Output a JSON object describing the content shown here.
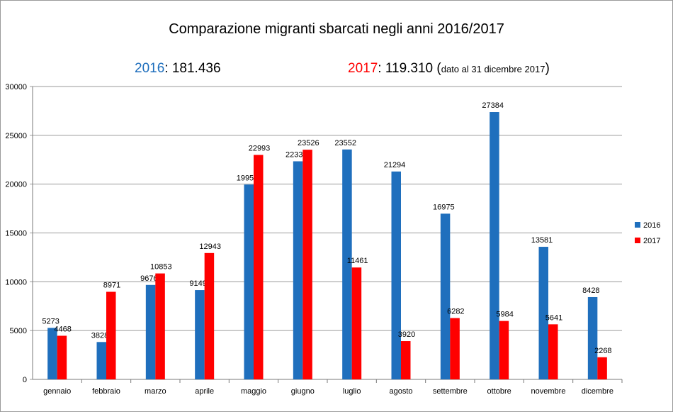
{
  "header": {
    "title": "Comparazione migranti sbarcati negli anni 2016/2017",
    "total_2016_year": "2016",
    "total_2016_value": ": 181.436",
    "total_2017_year": "2017",
    "total_2017_value": ": 119.310",
    "note_open": "(",
    "note_text": "dato al 31 dicembre 2017",
    "note_close": ")"
  },
  "colors": {
    "s2016": "#1f6fbd",
    "s2017": "#ff0000",
    "grid": "#9a9a9a"
  },
  "chart_data": {
    "type": "bar",
    "categories": [
      "gennaio",
      "febbraio",
      "marzo",
      "aprile",
      "maggio",
      "giugno",
      "luglio",
      "agosto",
      "settembre",
      "ottobre",
      "novembre",
      "dicembre"
    ],
    "series": [
      {
        "name": "2016",
        "values": [
          5273,
          3828,
          9676,
          9149,
          19957,
          22339,
          23552,
          21294,
          16975,
          27384,
          13581,
          8428
        ]
      },
      {
        "name": "2017",
        "values": [
          4468,
          8971,
          10853,
          12943,
          22993,
          23526,
          11461,
          3920,
          6282,
          5984,
          5641,
          2268
        ]
      }
    ],
    "ylim": [
      0,
      30000
    ],
    "yticks": [
      0,
      5000,
      10000,
      15000,
      20000,
      25000,
      30000
    ],
    "grid": true,
    "legend": "right",
    "data_labels": true
  }
}
